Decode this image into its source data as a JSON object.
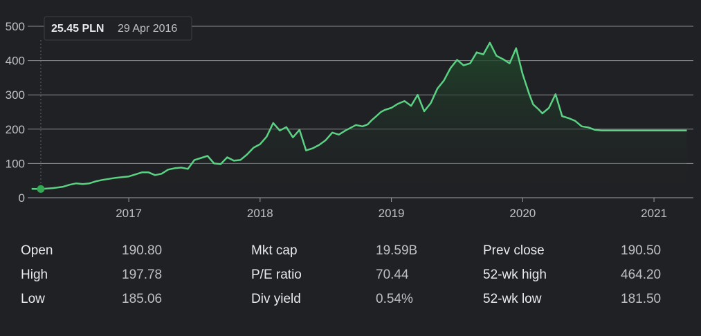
{
  "colors": {
    "background": "#202124",
    "line": "#5bd183",
    "grid": "#dadce0",
    "area_top": "#1f4a2b"
  },
  "chart_data": {
    "type": "line",
    "x_ticks": [
      "2017",
      "2018",
      "2019",
      "2020",
      "2021"
    ],
    "y_ticks": [
      "0",
      "100",
      "200",
      "300",
      "400",
      "500"
    ],
    "ylim": [
      0,
      500
    ],
    "xlim": [
      2016.23,
      2021.3
    ],
    "tooltip": {
      "price": "25.45 PLN",
      "date": "29 Apr 2016",
      "x": 2016.33,
      "y": 25.45
    },
    "series": [
      {
        "x": [
          2016.26,
          2016.33,
          2016.42,
          2016.5,
          2016.55,
          2016.6,
          2016.65,
          2016.7,
          2016.75,
          2016.8,
          2016.9,
          2017.0,
          2017.05,
          2017.1,
          2017.15,
          2017.2,
          2017.25,
          2017.3,
          2017.35,
          2017.4,
          2017.45,
          2017.5,
          2017.55,
          2017.6,
          2017.65,
          2017.7,
          2017.75,
          2017.8,
          2017.85,
          2017.9,
          2017.95,
          2018.0,
          2018.05,
          2018.1,
          2018.15,
          2018.2,
          2018.25,
          2018.3,
          2018.35,
          2018.4,
          2018.45,
          2018.5,
          2018.55,
          2018.6,
          2018.65,
          2018.7,
          2018.73,
          2018.78,
          2018.82,
          2018.85,
          2018.88,
          2018.92,
          2018.95,
          2019.0,
          2019.05,
          2019.1,
          2019.15,
          2019.2,
          2019.25,
          2019.3,
          2019.35,
          2019.4,
          2019.45,
          2019.5,
          2019.55,
          2019.6,
          2019.65,
          2019.7,
          2019.75,
          2019.8,
          2019.85,
          2019.9,
          2019.95,
          2020.0,
          2020.05,
          2020.08,
          2020.12,
          2020.15,
          2020.2,
          2020.25,
          2020.3,
          2020.35,
          2020.4,
          2020.45,
          2020.5,
          2020.55,
          2020.6,
          2020.65,
          2020.68,
          2020.72,
          2020.75,
          2020.8,
          2020.83,
          2020.88,
          2020.9,
          2020.93,
          2020.95,
          2021.0,
          2021.03,
          2021.08,
          2021.1,
          2021.15,
          2021.2,
          2021.25
        ],
        "y": [
          26,
          25.45,
          28,
          32,
          38,
          42,
          40,
          42,
          48,
          52,
          58,
          62,
          68,
          74,
          74,
          66,
          70,
          82,
          86,
          88,
          84,
          110,
          116,
          122,
          100,
          98,
          118,
          108,
          110,
          126,
          146,
          156,
          178,
          218,
          196,
          206,
          176,
          198,
          138,
          144,
          154,
          168,
          190,
          184,
          196,
          206,
          212,
          208,
          214,
          226,
          236,
          250,
          256,
          262,
          274,
          282,
          268,
          300,
          252,
          276,
          318,
          342,
          378,
          402,
          386,
          392,
          424,
          418,
          452,
          414,
          404,
          392,
          436,
          360,
          302,
          272,
          258,
          246,
          262,
          302,
          238,
          232,
          224,
          208,
          205,
          198,
          196,
          196,
          196,
          196,
          196,
          196,
          196,
          196,
          196,
          196,
          196,
          196,
          196,
          196,
          196,
          196,
          196,
          196
        ]
      }
    ]
  },
  "stats": [
    {
      "label": "Open",
      "value": "190.80"
    },
    {
      "label": "High",
      "value": "197.78"
    },
    {
      "label": "Low",
      "value": "185.06"
    },
    {
      "label": "Mkt cap",
      "value": "19.59B"
    },
    {
      "label": "P/E ratio",
      "value": "70.44"
    },
    {
      "label": "Div yield",
      "value": "0.54%"
    },
    {
      "label": "Prev close",
      "value": "190.50"
    },
    {
      "label": "52-wk high",
      "value": "464.20"
    },
    {
      "label": "52-wk low",
      "value": "181.50"
    }
  ]
}
